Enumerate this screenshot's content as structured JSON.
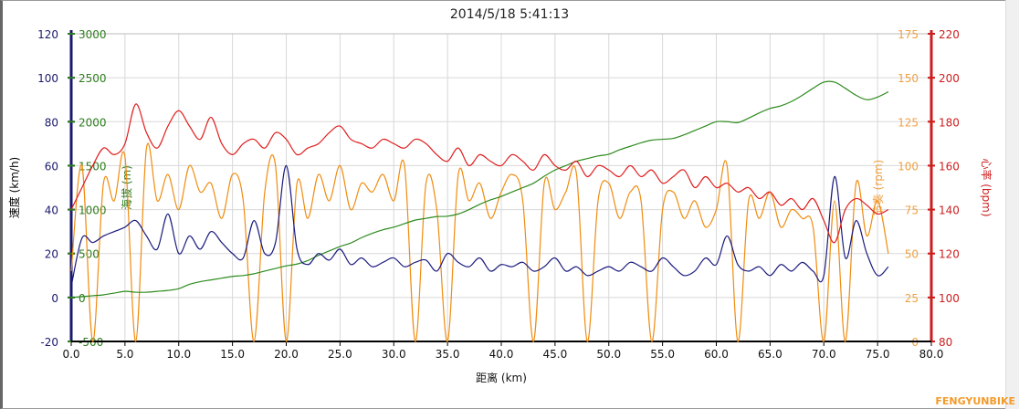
{
  "chart_data": {
    "type": "line",
    "title": "2014/5/18 5:41:13",
    "xlabel": "距离 (km)",
    "xlim": [
      0,
      80
    ],
    "xticks": [
      "0.0",
      "5.0",
      "10.0",
      "15.0",
      "20.0",
      "25.0",
      "30.0",
      "35.0",
      "40.0",
      "45.0",
      "50.0",
      "55.0",
      "60.0",
      "65.0",
      "70.0",
      "75.0",
      "80.0"
    ],
    "grid": true,
    "axes": [
      {
        "id": "speed",
        "label": "速度 (km/h)",
        "side": "left",
        "range": [
          -20,
          120
        ],
        "ticks": [
          "120",
          "100",
          "80",
          "60",
          "40",
          "20",
          "0",
          "-20"
        ],
        "color": "#1a1a6e"
      },
      {
        "id": "elevation",
        "label": "海拔 (m)",
        "side": "left-inner",
        "range": [
          -500,
          3000
        ],
        "ticks": [
          "3000",
          "2500",
          "2000",
          "1500",
          "1000",
          "500",
          "0",
          "-500"
        ],
        "color": "#2e7d1e"
      },
      {
        "id": "cadence",
        "label": "节奏 (rpm)",
        "side": "right-inner",
        "range": [
          0,
          175
        ],
        "ticks": [
          "175",
          "150",
          "125",
          "100",
          "75",
          "50",
          "25",
          "0"
        ],
        "color": "#f0a040"
      },
      {
        "id": "heartrate",
        "label": "心率 (bpm)",
        "side": "right",
        "range": [
          80,
          220
        ],
        "ticks": [
          "220",
          "200",
          "180",
          "160",
          "140",
          "120",
          "100",
          "80"
        ],
        "color": "#cc1e1e"
      }
    ],
    "x": [
      0,
      1,
      2,
      3,
      4,
      5,
      6,
      7,
      8,
      9,
      10,
      11,
      12,
      13,
      14,
      15,
      16,
      17,
      18,
      19,
      20,
      21,
      22,
      23,
      24,
      25,
      26,
      27,
      28,
      29,
      30,
      31,
      32,
      33,
      34,
      35,
      36,
      37,
      38,
      39,
      40,
      41,
      42,
      43,
      44,
      45,
      46,
      47,
      48,
      49,
      50,
      51,
      52,
      53,
      54,
      55,
      56,
      57,
      58,
      59,
      60,
      61,
      62,
      63,
      64,
      65,
      66,
      67,
      68,
      69,
      70,
      71,
      72,
      73,
      74,
      75,
      76
    ],
    "series": [
      {
        "axis": "cadence",
        "color": "#f08c10",
        "values": [
          40,
          100,
          0,
          90,
          80,
          105,
          0,
          110,
          80,
          95,
          75,
          100,
          85,
          90,
          70,
          95,
          80,
          0,
          85,
          100,
          0,
          90,
          70,
          95,
          80,
          100,
          75,
          90,
          85,
          95,
          80,
          100,
          0,
          90,
          75,
          0,
          95,
          80,
          90,
          70,
          85,
          95,
          80,
          0,
          90,
          75,
          85,
          95,
          0,
          80,
          90,
          70,
          85,
          80,
          0,
          75,
          85,
          70,
          80,
          65,
          75,
          100,
          0,
          80,
          70,
          85,
          65,
          75,
          70,
          65,
          0,
          80,
          0,
          90,
          60,
          80,
          50
        ]
      },
      {
        "axis": "elevation",
        "color": "#2e8b1e",
        "values": [
          0,
          10,
          20,
          30,
          50,
          70,
          60,
          60,
          70,
          80,
          100,
          150,
          180,
          200,
          220,
          240,
          250,
          270,
          300,
          330,
          360,
          380,
          420,
          480,
          530,
          580,
          620,
          680,
          730,
          770,
          800,
          840,
          880,
          900,
          920,
          925,
          950,
          1000,
          1060,
          1110,
          1150,
          1200,
          1250,
          1300,
          1380,
          1450,
          1500,
          1550,
          1580,
          1610,
          1630,
          1680,
          1720,
          1760,
          1790,
          1800,
          1810,
          1850,
          1900,
          1950,
          2000,
          2000,
          1990,
          2040,
          2100,
          2150,
          2180,
          2230,
          2300,
          2380,
          2450,
          2450,
          2380,
          2300,
          2250,
          2280,
          2340
        ]
      },
      {
        "axis": "speed",
        "color": "#1a1a7e",
        "values": [
          5,
          27,
          25,
          28,
          30,
          32,
          35,
          28,
          22,
          38,
          20,
          28,
          22,
          30,
          25,
          20,
          18,
          35,
          20,
          25,
          60,
          22,
          15,
          20,
          17,
          22,
          15,
          18,
          14,
          16,
          18,
          14,
          16,
          17,
          12,
          20,
          16,
          14,
          18,
          12,
          15,
          14,
          16,
          12,
          14,
          18,
          12,
          14,
          10,
          12,
          14,
          12,
          16,
          14,
          12,
          18,
          14,
          10,
          12,
          18,
          15,
          28,
          15,
          12,
          14,
          10,
          15,
          12,
          16,
          12,
          10,
          55,
          18,
          35,
          20,
          10,
          14
        ]
      },
      {
        "axis": "heartrate",
        "color": "#e01e1e",
        "values": [
          140,
          150,
          160,
          168,
          165,
          170,
          188,
          175,
          168,
          178,
          185,
          178,
          172,
          182,
          170,
          165,
          170,
          172,
          168,
          175,
          172,
          165,
          168,
          170,
          175,
          178,
          172,
          170,
          168,
          172,
          170,
          168,
          172,
          170,
          165,
          162,
          168,
          160,
          165,
          162,
          160,
          165,
          162,
          158,
          165,
          160,
          158,
          162,
          155,
          160,
          158,
          155,
          160,
          155,
          158,
          152,
          155,
          158,
          150,
          155,
          150,
          152,
          148,
          150,
          145,
          148,
          142,
          145,
          140,
          145,
          135,
          125,
          140,
          145,
          142,
          138,
          140
        ]
      }
    ]
  },
  "watermark": "风云单车 FENGYUNBIKE.COM"
}
